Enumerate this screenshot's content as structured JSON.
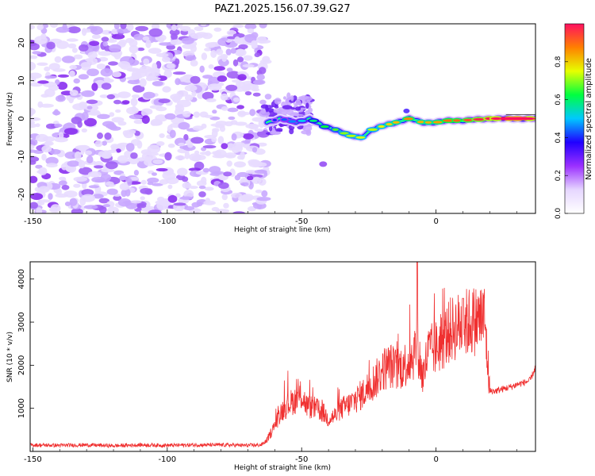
{
  "figure": {
    "title": "PAZ1.2025.156.07.39.G27"
  },
  "chart_data": [
    {
      "type": "heatmap",
      "xlabel": "Height of straight line (km)",
      "ylabel": "Frequency (Hz)",
      "xlim": [
        -151,
        37
      ],
      "ylim": [
        -25,
        25
      ],
      "xticks": [
        -150,
        -100,
        -50,
        0
      ],
      "yticks": [
        -20,
        -10,
        0,
        10,
        20
      ],
      "noise_region_x": [
        -151,
        -63
      ],
      "signal_track": {
        "x": [
          -63,
          -58,
          -52,
          -47,
          -42,
          -37,
          -32,
          -28,
          -24,
          -20,
          -15,
          -10,
          -5,
          0,
          5,
          10,
          20,
          30,
          37
        ],
        "frequency": [
          -1,
          0,
          -1,
          0,
          -2,
          -3,
          -4.5,
          -5,
          -3,
          -2,
          -1,
          0,
          -1,
          -1,
          -0.5,
          -0.5,
          0,
          0,
          0
        ],
        "amplitude": [
          0.25,
          0.3,
          0.35,
          0.45,
          0.5,
          0.55,
          0.6,
          0.62,
          0.6,
          0.65,
          0.7,
          0.75,
          0.7,
          0.72,
          0.78,
          0.8,
          0.9,
          0.95,
          0.9
        ]
      },
      "colorbar": {
        "label": "Normalized spectral amplitude",
        "range": [
          0,
          1
        ],
        "ticks": [
          "0.0",
          "0.2",
          "0.4",
          "0.6",
          "0.8"
        ],
        "colors": [
          "#ffffff",
          "#e6d6ff",
          "#9b30ff",
          "#2000ff",
          "#00c8ff",
          "#00ff40",
          "#e6ff00",
          "#ff8000",
          "#ff1060"
        ]
      }
    },
    {
      "type": "line",
      "xlabel": "Height of straight line (km)",
      "ylabel": "SNR (10 * v/v)",
      "xlim": [
        -151,
        37
      ],
      "ylim": [
        0,
        4400
      ],
      "xticks": [
        -150,
        -100,
        -50,
        0
      ],
      "yticks": [
        1000,
        2000,
        3000,
        4000
      ],
      "series": [
        {
          "color": "#f03030",
          "x": [
            -151,
            -140,
            -130,
            -120,
            -110,
            -100,
            -90,
            -80,
            -70,
            -65,
            -63,
            -60,
            -58,
            -55,
            -52,
            -50,
            -48,
            -45,
            -42,
            -40,
            -37,
            -35,
            -32,
            -30,
            -27,
            -25,
            -22,
            -20,
            -17,
            -15,
            -12,
            -10,
            -8,
            -7,
            -6,
            -5,
            -3,
            0,
            3,
            5,
            8,
            10,
            12,
            15,
            18,
            20,
            22,
            25,
            28,
            30,
            33,
            35,
            37
          ],
          "values": [
            150,
            140,
            150,
            130,
            150,
            140,
            150,
            150,
            140,
            150,
            250,
            600,
            900,
            1100,
            1200,
            1300,
            1050,
            1000,
            900,
            750,
            850,
            1000,
            1100,
            1200,
            1350,
            1500,
            1700,
            1900,
            2000,
            1900,
            2000,
            2100,
            2300,
            2500,
            2100,
            1700,
            2300,
            2400,
            2600,
            2800,
            2900,
            2950,
            3000,
            3050,
            3100,
            1400,
            1400,
            1450,
            1500,
            1550,
            1600,
            1650,
            1950
          ]
        }
      ]
    }
  ]
}
